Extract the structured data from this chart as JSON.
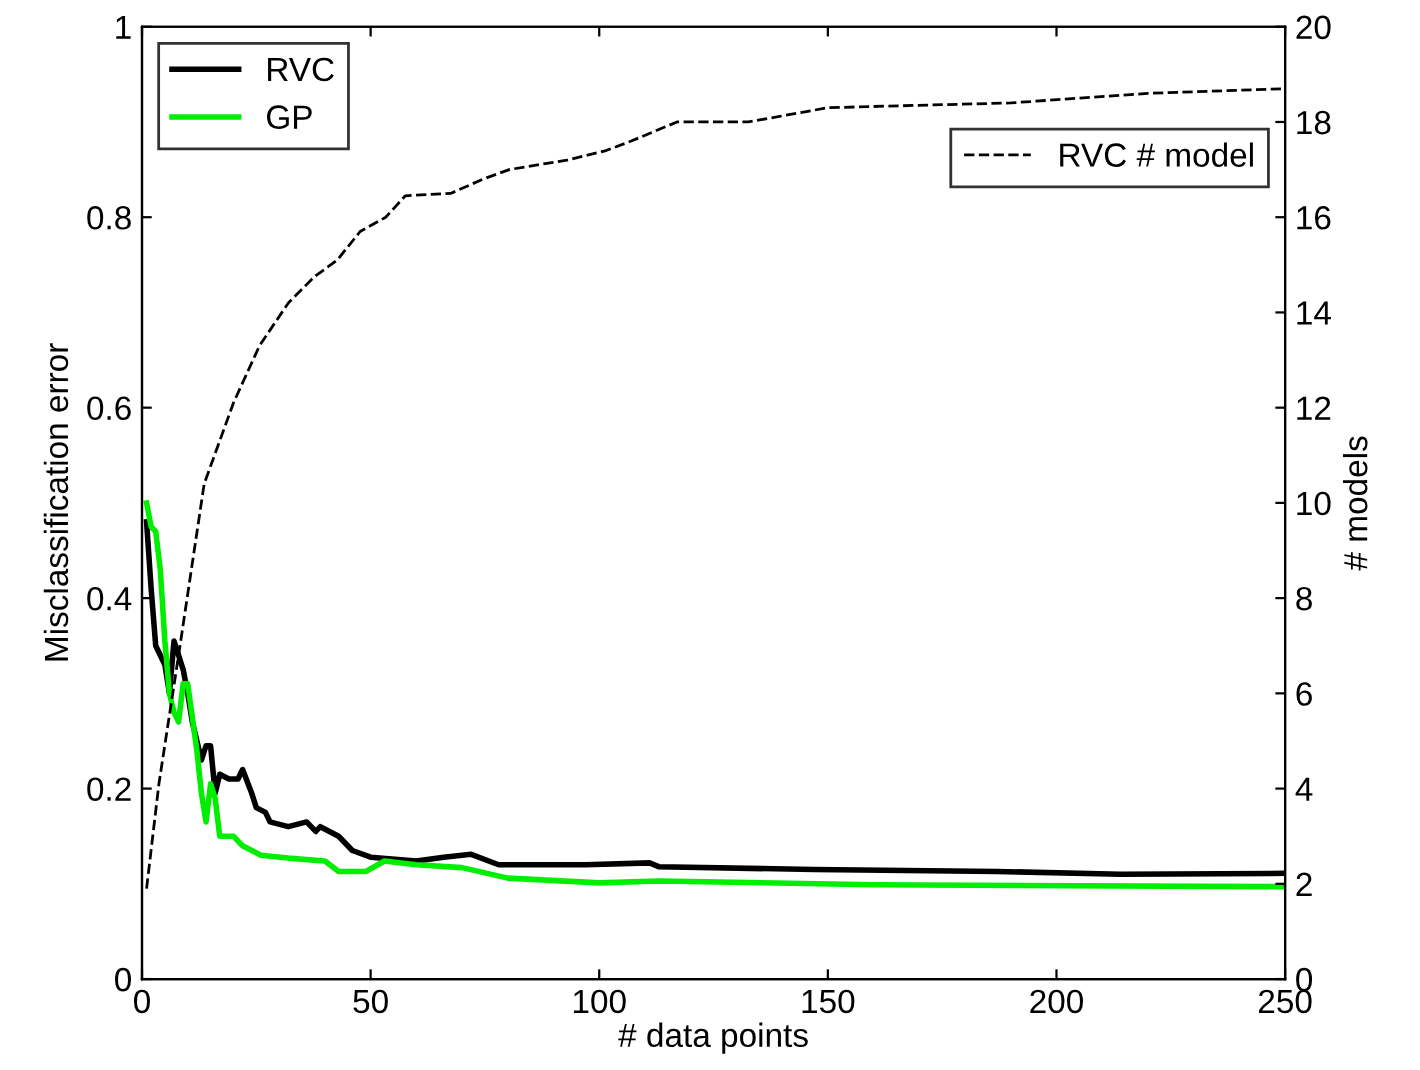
{
  "chart_data": {
    "type": "line",
    "xlabel": "# data points",
    "ylabel": "Misclassification error",
    "y2label": "# models",
    "xlim": [
      0,
      250
    ],
    "xticks": [
      0,
      50,
      100,
      150,
      200,
      250
    ],
    "ylim": [
      0,
      1
    ],
    "yticks": [
      0,
      0.2,
      0.4,
      0.6,
      0.8,
      1
    ],
    "y2lim": [
      0,
      20
    ],
    "y2ticks": [
      0,
      2,
      4,
      6,
      8,
      10,
      12,
      14,
      16,
      18,
      20
    ],
    "legend": "top left",
    "grid": false,
    "series": [
      {
        "name": "RVC",
        "color": "#000000",
        "line_style": "solid",
        "x": [
          1,
          2,
          3,
          5,
          6,
          7,
          9,
          10,
          11,
          13,
          14,
          15,
          16,
          17,
          19,
          21,
          22,
          24,
          25,
          27,
          28,
          32,
          36,
          38,
          39,
          43,
          46,
          50,
          60,
          66,
          72,
          78,
          97,
          111,
          113,
          147,
          187,
          214,
          250
        ],
        "values": [
          0.48,
          0.41,
          0.35,
          0.33,
          0.3,
          0.355,
          0.325,
          0.3,
          0.27,
          0.23,
          0.245,
          0.245,
          0.195,
          0.215,
          0.21,
          0.21,
          0.22,
          0.195,
          0.18,
          0.175,
          0.165,
          0.16,
          0.165,
          0.155,
          0.16,
          0.15,
          0.135,
          0.128,
          0.124,
          0.128,
          0.131,
          0.12,
          0.12,
          0.122,
          0.118,
          0.115,
          0.113,
          0.11,
          0.111
        ]
      },
      {
        "name": "GP",
        "color": "#00ee00",
        "line_style": "solid",
        "x": [
          1,
          2,
          3,
          4,
          5,
          6,
          7,
          8,
          9,
          10,
          11,
          12,
          13,
          14,
          15,
          16,
          17,
          20,
          22,
          26,
          32,
          40,
          43,
          49,
          53,
          60,
          70,
          80,
          100,
          113,
          160,
          250
        ],
        "values": [
          0.5,
          0.475,
          0.47,
          0.43,
          0.355,
          0.3,
          0.28,
          0.27,
          0.31,
          0.31,
          0.275,
          0.24,
          0.195,
          0.165,
          0.205,
          0.19,
          0.15,
          0.15,
          0.14,
          0.13,
          0.127,
          0.124,
          0.113,
          0.113,
          0.124,
          0.12,
          0.117,
          0.106,
          0.101,
          0.103,
          0.099,
          0.097
        ]
      },
      {
        "name": "RVC # model",
        "color": "#000000",
        "axis": "y2",
        "line_style": "dashed",
        "x": [
          1,
          3.7,
          8,
          13.6,
          20,
          25.7,
          32,
          37.7,
          42.7,
          47.7,
          53.3,
          57.6,
          67.5,
          74.6,
          80.3,
          93,
          101.5,
          107,
          117,
          132.6,
          150,
          190,
          220,
          250
        ],
        "values": [
          1.9,
          4.1,
          6.8,
          10.4,
          12.1,
          13.3,
          14.2,
          14.75,
          15.1,
          15.7,
          16.0,
          16.45,
          16.5,
          16.8,
          17.0,
          17.2,
          17.4,
          17.6,
          18.0,
          18.0,
          18.3,
          18.4,
          18.6,
          18.7
        ]
      }
    ]
  }
}
